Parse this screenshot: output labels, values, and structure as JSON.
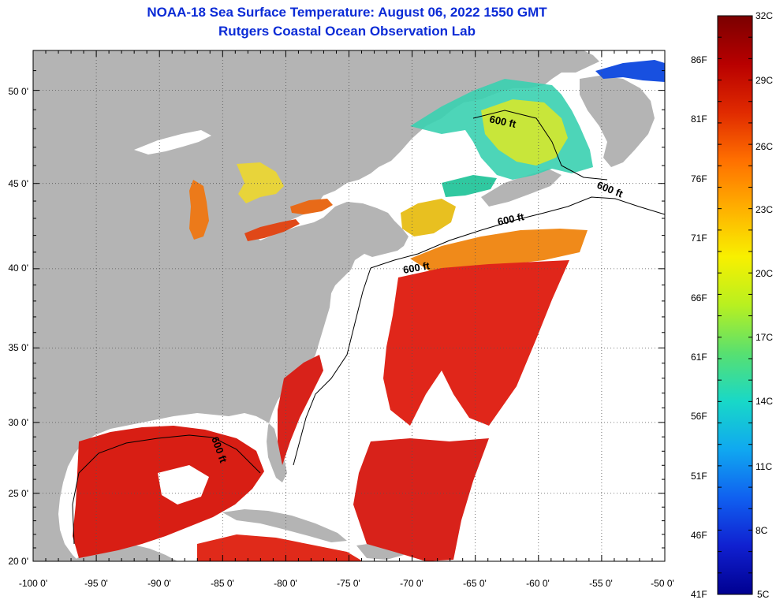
{
  "title": {
    "line1": "NOAA-18 Sea Surface Temperature:  August 06, 2022 1550 GMT",
    "line2": "Rutgers Coastal Ocean Observation Lab"
  },
  "map": {
    "type": "sea-surface-temperature",
    "lon_range": [
      -100,
      -50
    ],
    "lat_range": [
      20,
      52
    ],
    "lon_labels": [
      "-100 0'",
      "-95 0'",
      "-90 0'",
      "-85 0'",
      "-80 0'",
      "-75 0'",
      "-70 0'",
      "-65 0'",
      "-60 0'",
      "-55 0'",
      "-50 0'"
    ],
    "lat_labels": [
      "20 0'",
      "25 0'",
      "30 0'",
      "35 0'",
      "40 0'",
      "45 0'",
      "50 0'"
    ],
    "contour_labels": [
      "600 ft",
      "600 ft",
      "600 ft",
      "600 ft",
      "600 ft"
    ],
    "colors": {
      "land": "#b4b4b4",
      "no_data": "#ffffff",
      "warm": "#d6200f",
      "cool": "#2ab3e0"
    }
  },
  "colorbar": {
    "celsius_labels": [
      "32C",
      "29C",
      "26C",
      "23C",
      "20C",
      "17C",
      "14C",
      "11C",
      "8C",
      "5C"
    ],
    "fahrenheit_labels": [
      "86F",
      "81F",
      "76F",
      "71F",
      "66F",
      "61F",
      "56F",
      "51F",
      "46F",
      "41F"
    ],
    "gradient": [
      "#7a0000",
      "#b80000",
      "#e02a00",
      "#ff7000",
      "#ffb000",
      "#f8f000",
      "#b8f020",
      "#58e070",
      "#18d8c8",
      "#10a8f0",
      "#1060f0",
      "#1020d0",
      "#000090"
    ]
  }
}
